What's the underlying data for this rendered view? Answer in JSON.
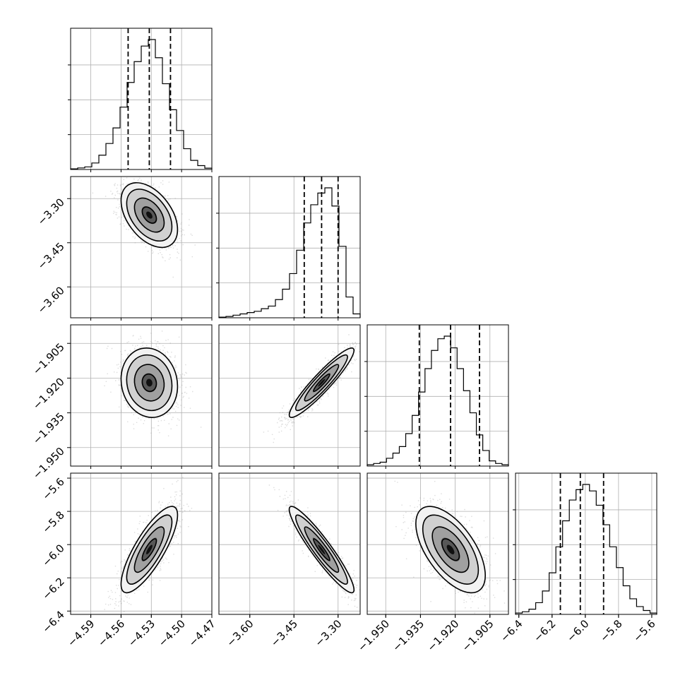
{
  "chart_data": {
    "type": "corner",
    "parameters": [
      {
        "range": [
          -4.61,
          -4.47
        ],
        "ticks": [
          -4.59,
          -4.56,
          -4.53,
          -4.5,
          -4.47
        ],
        "tick_labels": [
          "−4.59",
          "−4.56",
          "−4.53",
          "−4.50",
          "−4.47"
        ],
        "quantiles": [
          -4.553,
          -4.532,
          -4.511
        ]
      },
      {
        "range": [
          -3.705,
          -3.225
        ],
        "ticks": [
          -3.6,
          -3.45,
          -3.3
        ],
        "tick_labels": [
          "−3.60",
          "−3.45",
          "−3.30"
        ],
        "quantiles": [
          -3.415,
          -3.356,
          -3.3
        ]
      },
      {
        "range": [
          -1.958,
          -1.897
        ],
        "ticks": [
          -1.95,
          -1.935,
          -1.92,
          -1.905
        ],
        "tick_labels": [
          "−1.950",
          "−1.935",
          "−1.920",
          "−1.905"
        ],
        "quantiles": [
          -1.9355,
          -1.922,
          -1.9095
        ]
      },
      {
        "range": [
          -6.42,
          -5.57
        ],
        "ticks": [
          -6.4,
          -6.2,
          -6.0,
          -5.8,
          -5.6
        ],
        "tick_labels": [
          "−6.4",
          "−6.2",
          "−6.0",
          "−5.8",
          "−5.6"
        ],
        "quantiles": [
          -6.15,
          -6.03,
          -5.89
        ]
      }
    ],
    "histograms": [
      [
        0.005,
        0.012,
        0.02,
        0.05,
        0.11,
        0.2,
        0.32,
        0.48,
        0.67,
        0.83,
        0.95,
        1.0,
        0.86,
        0.66,
        0.46,
        0.3,
        0.16,
        0.07,
        0.03,
        0.01
      ],
      [
        0.005,
        0.01,
        0.02,
        0.03,
        0.04,
        0.05,
        0.07,
        0.09,
        0.14,
        0.22,
        0.34,
        0.52,
        0.73,
        0.87,
        0.96,
        1.0,
        0.86,
        0.55,
        0.16,
        0.03
      ],
      [
        0.01,
        0.02,
        0.03,
        0.06,
        0.1,
        0.15,
        0.25,
        0.39,
        0.57,
        0.75,
        0.89,
        0.98,
        1.0,
        0.91,
        0.75,
        0.58,
        0.41,
        0.24,
        0.12,
        0.04,
        0.02,
        0.01
      ],
      [
        0.01,
        0.02,
        0.04,
        0.09,
        0.18,
        0.32,
        0.52,
        0.72,
        0.88,
        0.96,
        1.0,
        0.95,
        0.84,
        0.69,
        0.52,
        0.36,
        0.22,
        0.12,
        0.06,
        0.03,
        0.01
      ]
    ],
    "pairs": [
      {
        "row": 1,
        "col": 0,
        "mean": [
          -4.532,
          -3.356
        ],
        "sd": [
          0.014,
          0.055
        ],
        "corr": -0.45
      },
      {
        "row": 2,
        "col": 0,
        "mean": [
          -4.532,
          -1.922
        ],
        "sd": [
          0.014,
          0.0075
        ],
        "corr": -0.1
      },
      {
        "row": 2,
        "col": 1,
        "mean": [
          -3.356,
          -1.922
        ],
        "sd": [
          0.055,
          0.0075
        ],
        "corr": 0.93
      },
      {
        "row": 3,
        "col": 0,
        "mean": [
          -4.532,
          -6.03
        ],
        "sd": [
          0.014,
          0.13
        ],
        "corr": 0.8
      },
      {
        "row": 3,
        "col": 1,
        "mean": [
          -3.356,
          -6.03
        ],
        "sd": [
          0.055,
          0.13
        ],
        "corr": -0.93
      },
      {
        "row": 3,
        "col": 2,
        "mean": [
          -1.922,
          -6.03
        ],
        "sd": [
          0.0075,
          0.13
        ],
        "corr": -0.6
      }
    ],
    "grid": true,
    "contour_levels": 4
  }
}
